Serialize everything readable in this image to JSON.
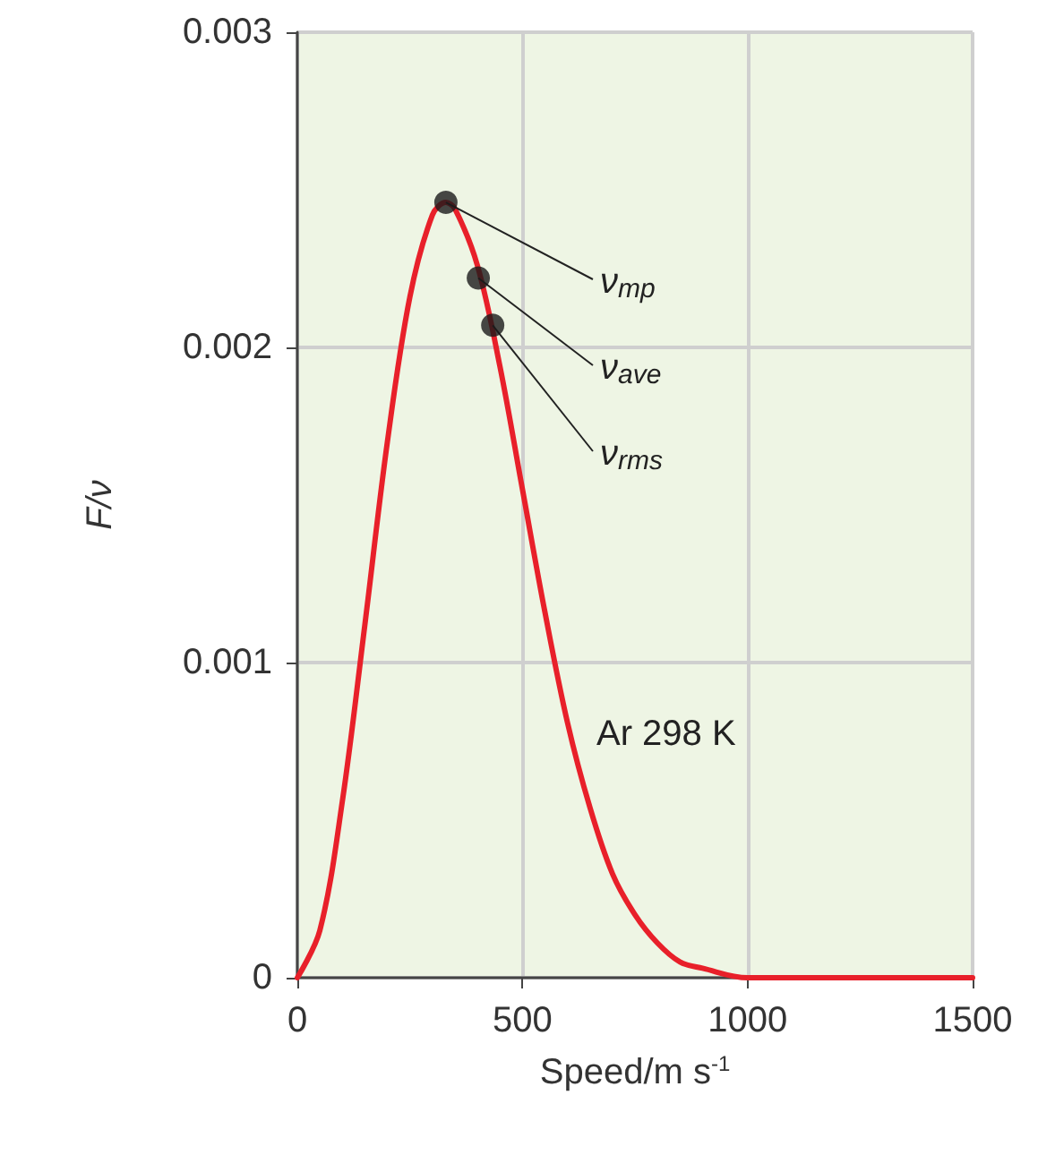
{
  "chart_data": {
    "type": "line",
    "xlabel": "Speed/m s$^{-1}$",
    "ylabel": "F/ν",
    "xlim": [
      0,
      1500
    ],
    "xticks": [
      0,
      500,
      1000,
      1500
    ],
    "ylim": [
      0,
      0.003
    ],
    "yticks": [
      0,
      0.001,
      0.002,
      0.003
    ],
    "grid": true,
    "marker": "none",
    "line_style": "solid",
    "series": [
      {
        "color": "#e8202a",
        "x": [
          0,
          50,
          100,
          150,
          200,
          250,
          300,
          330,
          350,
          400,
          450,
          500,
          550,
          600,
          650,
          700,
          750,
          800,
          850,
          900,
          1000,
          1100,
          1500
        ],
        "values": [
          0,
          0.00015,
          0.00056,
          0.00112,
          0.0017,
          0.00216,
          0.00242,
          0.00246,
          0.00244,
          0.00226,
          0.00194,
          0.00155,
          0.00116,
          0.00081,
          0.00054,
          0.00033,
          0.0002,
          0.00011,
          5e-05,
          3e-05,
          0,
          0,
          0
        ]
      },
      {
        "type": "scatter",
        "color": "#1a1a1a",
        "marker": "circle",
        "x": [
          330,
          402,
          434
        ],
        "values": [
          0.00246,
          0.00222,
          0.00207
        ]
      }
    ],
    "annotations": [
      {
        "text": "ν$_{mp}$",
        "x": 330,
        "y": 0.00246
      },
      {
        "text": "ν$_{ave}$",
        "x": 402,
        "y": 0.00222
      },
      {
        "text": "ν$_{rms}$",
        "x": 434,
        "y": 0.00207
      },
      "Ar 298 K"
    ]
  }
}
